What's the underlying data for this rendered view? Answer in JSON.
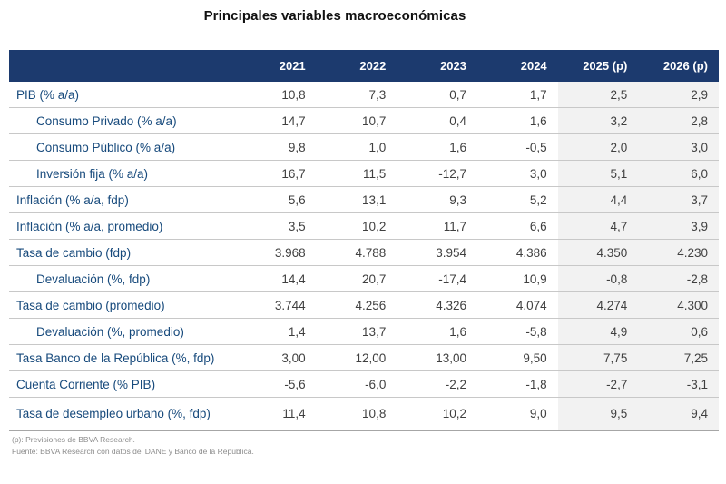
{
  "title": "Principales variables macroeconómicas",
  "colors": {
    "header_bg": "#1C3A6E",
    "label_text": "#174A7C",
    "value_text": "#3F3F3F",
    "forecast_column_bg": "#F2F2F2",
    "row_separator": "#C8C8C8"
  },
  "table": {
    "columns": [
      "2021",
      "2022",
      "2023",
      "2024",
      "2025 (p)",
      "2026 (p)"
    ],
    "rows": [
      {
        "label": "PIB (% a/a)",
        "indent": false,
        "values": [
          "10,8",
          "7,3",
          "0,7",
          "1,7",
          "2,5",
          "2,9"
        ]
      },
      {
        "label": "Consumo Privado (% a/a)",
        "indent": true,
        "values": [
          "14,7",
          "10,7",
          "0,4",
          "1,6",
          "3,2",
          "2,8"
        ]
      },
      {
        "label": "Consumo Público (% a/a)",
        "indent": true,
        "values": [
          "9,8",
          "1,0",
          "1,6",
          "-0,5",
          "2,0",
          "3,0"
        ]
      },
      {
        "label": "Inversión fija (% a/a)",
        "indent": true,
        "values": [
          "16,7",
          "11,5",
          "-12,7",
          "3,0",
          "5,1",
          "6,0"
        ]
      },
      {
        "label": "Inflación (% a/a, fdp)",
        "indent": false,
        "values": [
          "5,6",
          "13,1",
          "9,3",
          "5,2",
          "4,4",
          "3,7"
        ]
      },
      {
        "label": "Inflación (% a/a, promedio)",
        "indent": false,
        "values": [
          "3,5",
          "10,2",
          "11,7",
          "6,6",
          "4,7",
          "3,9"
        ]
      },
      {
        "label": "Tasa de cambio (fdp)",
        "indent": false,
        "values": [
          "3.968",
          "4.788",
          "3.954",
          "4.386",
          "4.350",
          "4.230"
        ]
      },
      {
        "label": "Devaluación (%, fdp)",
        "indent": true,
        "values": [
          "14,4",
          "20,7",
          "-17,4",
          "10,9",
          "-0,8",
          "-2,8"
        ]
      },
      {
        "label": "Tasa de cambio (promedio)",
        "indent": false,
        "values": [
          "3.744",
          "4.256",
          "4.326",
          "4.074",
          "4.274",
          "4.300"
        ]
      },
      {
        "label": "Devaluación (%, promedio)",
        "indent": true,
        "values": [
          "1,4",
          "13,7",
          "1,6",
          "-5,8",
          "4,9",
          "0,6"
        ]
      },
      {
        "label": "Tasa Banco de la República (%, fdp)",
        "indent": false,
        "values": [
          "3,00",
          "12,00",
          "13,00",
          "9,50",
          "7,75",
          "7,25"
        ]
      },
      {
        "label": "Cuenta Corriente (% PIB)",
        "indent": false,
        "values": [
          "-5,6",
          "-6,0",
          "-2,2",
          "-1,8",
          "-2,7",
          "-3,1"
        ]
      },
      {
        "label": "Tasa de desempleo urbano (%, fdp)",
        "indent": false,
        "values": [
          "11,4",
          "10,8",
          "10,2",
          "9,0",
          "9,5",
          "9,4"
        ]
      }
    ]
  },
  "footnotes": [
    "(p): Previsiones de BBVA Research.",
    "Fuente: BBVA Research con datos del DANE y Banco de la República."
  ]
}
